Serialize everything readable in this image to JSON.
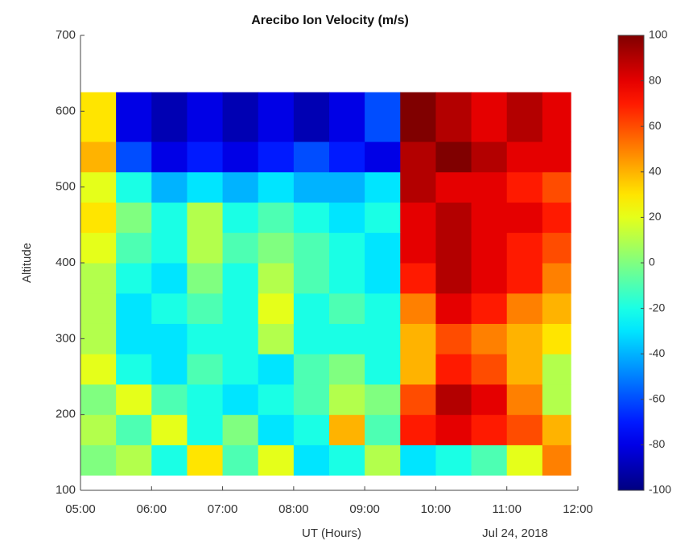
{
  "chart_data": {
    "type": "heatmap",
    "title": "Arecibo Ion Velocity (m/s)",
    "x_label": "UT (Hours)",
    "y_label": "Altitude",
    "annotation": "Jul 24, 2018",
    "colormap": "jet",
    "clim": [
      -100,
      100
    ],
    "cticks": [
      -100,
      -80,
      -60,
      -40,
      -20,
      0,
      20,
      40,
      60,
      80,
      100
    ],
    "xlim": [
      5,
      12
    ],
    "xticks": [
      {
        "value": 5,
        "label": "05:00"
      },
      {
        "value": 6,
        "label": "06:00"
      },
      {
        "value": 7,
        "label": "07:00"
      },
      {
        "value": 8,
        "label": "08:00"
      },
      {
        "value": 9,
        "label": "09:00"
      },
      {
        "value": 10,
        "label": "10:00"
      },
      {
        "value": 11,
        "label": "11:00"
      },
      {
        "value": 12,
        "label": "12:00"
      }
    ],
    "ylim": [
      100,
      700
    ],
    "yticks": [
      100,
      200,
      300,
      400,
      500,
      600,
      700
    ],
    "x_bins": [
      5,
      5.5,
      6,
      6.5,
      7,
      7.5,
      8,
      8.5,
      9,
      9.5,
      10,
      10.5,
      11,
      11.5,
      11.9
    ],
    "y_bins": [
      120,
      160,
      200,
      240,
      280,
      320,
      360,
      400,
      440,
      480,
      520,
      560,
      625
    ],
    "z": [
      [
        0,
        10,
        -20,
        30,
        -10,
        20,
        -30,
        -20,
        10,
        -30,
        -20,
        -10,
        20,
        50
      ],
      [
        10,
        -10,
        20,
        -20,
        0,
        -30,
        -20,
        40,
        -10,
        70,
        80,
        70,
        60,
        40
      ],
      [
        0,
        20,
        -10,
        -20,
        -30,
        -20,
        -10,
        10,
        0,
        60,
        90,
        80,
        50,
        10
      ],
      [
        20,
        -20,
        -30,
        -10,
        -20,
        -30,
        -10,
        0,
        -20,
        40,
        70,
        60,
        40,
        10
      ],
      [
        10,
        -30,
        -30,
        -20,
        -20,
        10,
        -20,
        -20,
        -20,
        40,
        60,
        50,
        40,
        30
      ],
      [
        10,
        -30,
        -20,
        -10,
        -20,
        20,
        -20,
        -10,
        -20,
        50,
        80,
        70,
        50,
        40
      ],
      [
        10,
        -20,
        -30,
        0,
        -20,
        10,
        -10,
        -20,
        -30,
        70,
        90,
        80,
        70,
        50
      ],
      [
        20,
        -10,
        -20,
        10,
        -10,
        0,
        -10,
        -20,
        -30,
        80,
        90,
        80,
        70,
        60
      ],
      [
        30,
        0,
        -20,
        10,
        -20,
        -10,
        -20,
        -30,
        -20,
        80,
        90,
        80,
        80,
        70
      ],
      [
        20,
        -20,
        -40,
        -30,
        -40,
        -30,
        -40,
        -40,
        -30,
        90,
        80,
        80,
        70,
        60
      ],
      [
        40,
        -60,
        -80,
        -70,
        -80,
        -70,
        -60,
        -70,
        -80,
        90,
        100,
        90,
        80,
        80
      ],
      [
        30,
        -80,
        -90,
        -80,
        -90,
        -80,
        -90,
        -80,
        -60,
        100,
        90,
        80,
        90,
        80
      ]
    ]
  }
}
